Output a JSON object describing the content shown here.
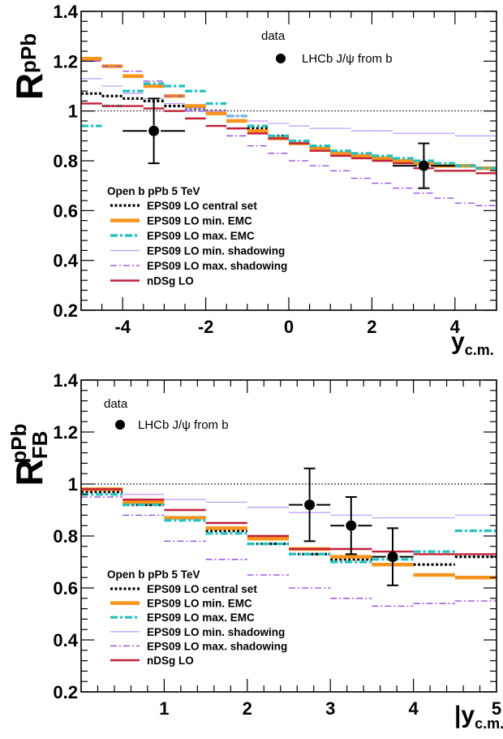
{
  "chart_data": [
    {
      "id": "rppb",
      "type": "step",
      "y_label_main": "R",
      "y_label_sup": "pPb",
      "y_label_sub": "",
      "x_label_main": "y",
      "x_label_sub": "c.m.",
      "x_label_bars": false,
      "xlim": [
        -5,
        5
      ],
      "ylim": [
        0.2,
        1.4
      ],
      "xticks": [
        -4,
        -2,
        0,
        2,
        4
      ],
      "xtick_labels": [
        "-4",
        "-2",
        "0",
        "2",
        "4"
      ],
      "yticks": [
        0.2,
        0.4,
        0.6,
        0.8,
        1.0,
        1.2,
        1.4
      ],
      "ytick_labels": [
        "0.2",
        "0.4",
        "0.6",
        "0.8",
        "1",
        "1.2",
        "1.4"
      ],
      "reference_line": 1.0,
      "bin_edges": [
        -5,
        -4.5,
        -4,
        -3.5,
        -3,
        -2.5,
        -2,
        -1.5,
        -1,
        -0.5,
        0,
        0.5,
        1,
        1.5,
        2,
        2.5,
        3,
        3.5,
        4,
        4.5,
        5
      ],
      "data_legend_title": "data",
      "data_series": {
        "name": "LHCb J/ψ from b",
        "points": [
          {
            "x": -3.25,
            "y": 0.92,
            "xerr": 0.75,
            "yerr_low": 0.13,
            "yerr_high": 0.13
          },
          {
            "x": 3.25,
            "y": 0.78,
            "xerr": 0.75,
            "yerr_low": 0.09,
            "yerr_high": 0.09
          }
        ]
      },
      "model_legend_title": "Open b pPb 5 TeV",
      "model_series": [
        {
          "name": "EPS09 LO central set",
          "color": "#000000",
          "style": "dotted",
          "values": [
            1.07,
            1.06,
            1.05,
            1.04,
            1.02,
            1.01,
            1.0,
            0.96,
            0.93,
            0.9,
            0.87,
            0.85,
            0.83,
            0.82,
            0.81,
            0.8,
            0.79,
            0.78,
            0.78,
            0.77
          ]
        },
        {
          "name": "EPS09 LO min. EMC",
          "color": "#f7941d",
          "style": "solid-thick",
          "values": [
            1.21,
            1.18,
            1.14,
            1.1,
            1.06,
            1.02,
            0.99,
            0.96,
            0.92,
            0.89,
            0.87,
            0.85,
            0.83,
            0.82,
            0.81,
            0.8,
            0.79,
            0.78,
            0.78,
            0.77
          ]
        },
        {
          "name": "EPS09 LO max. EMC",
          "color": "#20c0c0",
          "style": "dashdot",
          "values": [
            0.94,
            1.02,
            1.08,
            1.11,
            1.1,
            1.08,
            1.03,
            0.98,
            0.94,
            0.9,
            0.88,
            0.86,
            0.84,
            0.83,
            0.82,
            0.81,
            0.8,
            0.79,
            0.78,
            0.77
          ]
        },
        {
          "name": "EPS09 LO min. shadowing",
          "color": "#c0a0ff",
          "style": "solid-thin",
          "values": [
            1.13,
            1.1,
            1.07,
            1.05,
            1.03,
            1.01,
            1.0,
            0.98,
            0.96,
            0.95,
            0.94,
            0.93,
            0.93,
            0.92,
            0.92,
            0.91,
            0.91,
            0.91,
            0.9,
            0.9
          ]
        },
        {
          "name": "EPS09 LO max. shadowing",
          "color": "#9040e0",
          "style": "dashdot-thin",
          "values": [
            1.2,
            1.18,
            1.16,
            1.12,
            1.06,
            1.0,
            0.94,
            0.9,
            0.86,
            0.83,
            0.8,
            0.78,
            0.76,
            0.73,
            0.71,
            0.69,
            0.67,
            0.65,
            0.63,
            0.62
          ]
        },
        {
          "name": "nDSg LO",
          "color": "#c0203a",
          "style": "solid",
          "values": [
            1.03,
            1.02,
            1.02,
            1.01,
            1.0,
            0.97,
            0.94,
            0.93,
            0.91,
            0.89,
            0.87,
            0.84,
            0.82,
            0.81,
            0.8,
            0.79,
            0.77,
            0.76,
            0.76,
            0.75
          ]
        }
      ]
    },
    {
      "id": "rfb",
      "type": "step",
      "y_label_main": "R",
      "y_label_sup": "pPb",
      "y_label_sub": "FB",
      "x_label_main": "y",
      "x_label_sub": "c.m.",
      "x_label_bars": true,
      "xlim": [
        0,
        5
      ],
      "ylim": [
        0.2,
        1.4
      ],
      "xticks": [
        1,
        2,
        3,
        4,
        5
      ],
      "xtick_labels": [
        "1",
        "2",
        "3",
        "4",
        "5"
      ],
      "yticks": [
        0.2,
        0.4,
        0.6,
        0.8,
        1.0,
        1.2,
        1.4
      ],
      "ytick_labels": [
        "0.2",
        "0.4",
        "0.6",
        "0.8",
        "1",
        "1.2",
        "1.4"
      ],
      "reference_line": 1.0,
      "bin_edges": [
        0,
        0.5,
        1,
        1.5,
        2,
        2.5,
        3,
        3.5,
        4,
        4.5,
        5
      ],
      "data_legend_title": "data",
      "data_series": {
        "name": "LHCb J/ψ from b",
        "points": [
          {
            "x": 2.75,
            "y": 0.92,
            "xerr": 0.25,
            "yerr_low": 0.14,
            "yerr_high": 0.14
          },
          {
            "x": 3.25,
            "y": 0.84,
            "xerr": 0.25,
            "yerr_low": 0.11,
            "yerr_high": 0.11
          },
          {
            "x": 3.75,
            "y": 0.72,
            "xerr": 0.25,
            "yerr_low": 0.11,
            "yerr_high": 0.11
          }
        ]
      },
      "model_legend_title": "Open b pPb 5 TeV",
      "model_series": [
        {
          "name": "EPS09 LO central set",
          "color": "#000000",
          "style": "dotted",
          "values": [
            0.97,
            0.92,
            0.87,
            0.82,
            0.77,
            0.73,
            0.71,
            0.69,
            0.69,
            0.72
          ]
        },
        {
          "name": "EPS09 LO min. EMC",
          "color": "#f7941d",
          "style": "solid-thick",
          "values": [
            0.98,
            0.93,
            0.87,
            0.83,
            0.79,
            0.75,
            0.72,
            0.69,
            0.65,
            0.64
          ]
        },
        {
          "name": "EPS09 LO max. EMC",
          "color": "#20c0c0",
          "style": "dashdot",
          "values": [
            0.96,
            0.92,
            0.86,
            0.81,
            0.77,
            0.73,
            0.7,
            0.71,
            0.74,
            0.82
          ]
        },
        {
          "name": "EPS09 LO min. shadowing",
          "color": "#c0a0ff",
          "style": "solid-thin",
          "values": [
            0.98,
            0.96,
            0.94,
            0.93,
            0.91,
            0.89,
            0.88,
            0.87,
            0.87,
            0.88
          ]
        },
        {
          "name": "EPS09 LO max. shadowing",
          "color": "#9040e0",
          "style": "dashdot-thin",
          "values": [
            0.95,
            0.88,
            0.78,
            0.71,
            0.65,
            0.6,
            0.56,
            0.53,
            0.54,
            0.55
          ]
        },
        {
          "name": "nDSg LO",
          "color": "#c0203a",
          "style": "solid",
          "values": [
            0.98,
            0.94,
            0.9,
            0.85,
            0.8,
            0.75,
            0.75,
            0.74,
            0.73,
            0.73
          ]
        }
      ]
    }
  ]
}
